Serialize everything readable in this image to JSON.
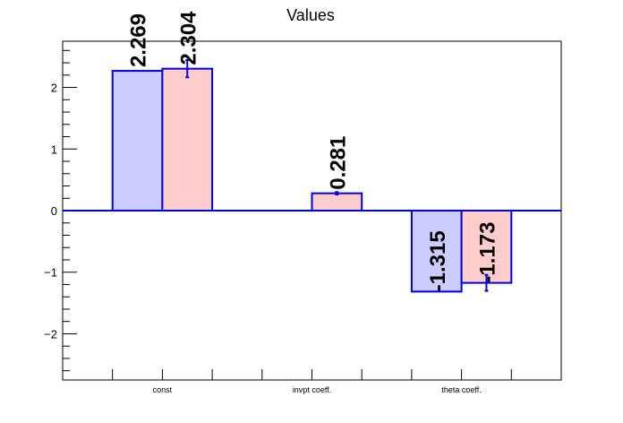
{
  "chart_data": {
    "type": "bar",
    "title": "Values",
    "xlabel": "",
    "ylabel": "",
    "categories": [
      "const",
      "invpt coeff.",
      "theta coeff."
    ],
    "ylim": [
      -2.75,
      2.75
    ],
    "yticks": [
      -2,
      -1,
      0,
      1,
      2
    ],
    "grid": false,
    "series": [
      {
        "values": [
          2.269,
          null,
          -1.315
        ],
        "labels": [
          "2.269",
          "",
          "-1.315"
        ],
        "errors": [
          null,
          null,
          null
        ],
        "fill": "#ccccff",
        "stroke": "#0000dd"
      },
      {
        "values": [
          2.304,
          0.281,
          -1.173
        ],
        "labels": [
          "2.304",
          "0.281",
          "-1.173"
        ],
        "errors": [
          0.14,
          0.02,
          0.13
        ],
        "fill": "#ffcccc",
        "stroke": "#0000dd"
      }
    ]
  }
}
